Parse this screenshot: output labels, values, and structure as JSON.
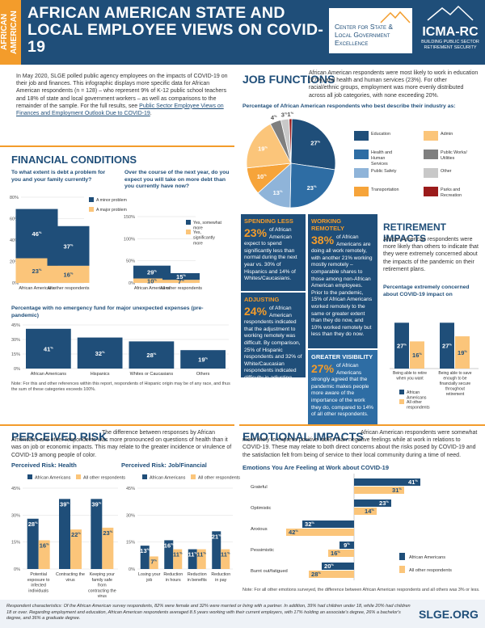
{
  "header": {
    "side_label": "AFRICAN AMERICAN",
    "title": "AFRICAN AMERICAN STATE AND LOCAL EMPLOYEE VIEWS ON COVID-19",
    "logo1": [
      "Center for State &",
      "Local Government",
      "Excellence"
    ],
    "logo2_name": "ICMA-RC",
    "logo2_sub": "BUILDING PUBLIC SECTOR RETIREMENT SECURITY"
  },
  "intro": {
    "text": "In May 2020, SLGE polled public agency employees on the impacts of COVID-19 on their job and finances. This infographic displays more specific data for African American respondents (n = 128) – who represent 9% of K-12 public school teachers and 18% of state and local government workers – as well as comparisons to the remainder of the sample.",
    "link_prefix": "For the full results, see",
    "link": "Public Sector Employee Views on Finances and Employment Outlook Due to COVID-19",
    "link_suffix": "."
  },
  "financial": {
    "title": "FINANCIAL CONDITIONS",
    "q1": "To what extent is debt a problem for you and your family currently?",
    "q2": "Over the course of the next year, do you expect you will take on more debt than you currently have now?",
    "q3": "Percentage with no emergency fund for major unexpected expenses (pre-pandemic)",
    "note": "Note: For this and other references within this report, respondents of Hispanic origin may be of any race, and thus the sum of these categories exceeds 100%."
  },
  "job": {
    "title": "JOB FUNCTIONS",
    "text": "African American respondents were most likely to work in education (27%) and health and human services (23%). For other racial/ethnic groups, employment was more evenly distributed across all job categories, with none exceeding 20%.",
    "chart_title": "Percentage of African American respondents who best describe their industry as:"
  },
  "spending": {
    "title": "SPENDING LESS",
    "pct": "23%",
    "text": "of African American expect to spend significantly less than normal during the next year vs. 30% of Hispanics and 14% of Whites/Caucasians."
  },
  "adjusting": {
    "title": "ADJUSTING",
    "pct": "24%",
    "text": "of African American respondents indicated that the adjustment to working remotely was difficult. By comparison, 25% of Hispanic respondents and 32% of White/Caucasian respondents indicated difficulty in adjusting."
  },
  "remote": {
    "title": "WORKING REMOTELY",
    "pct": "38%",
    "text": "of African Americans are doing all work remotely, with another 21% working mostly remotely – comparable shares to those among non-African American employees. Prior to the pandemic, 15% of African Americans worked remotely to the same or greater extent than they do now, and 10% worked remotely but less than they do now."
  },
  "visibility": {
    "title": "GREATER VISIBILITY",
    "pct": "27%",
    "text": "of African Americans strongly agreed that the pandemic makes people more aware of the importance of the work they do, compared to 14% of all other respondents."
  },
  "retirement": {
    "title": "RETIREMENT IMPACTS",
    "text": "African American respondents were more likely than others to indicate that they were extremely concerned about the impacts of the pandemic on their retirement plans.",
    "chart_title": "Percentage extremely concerned about COVID-19 impact on"
  },
  "risk": {
    "title": "PERCEIVED RISK",
    "text": "The difference between responses by African Americans and other respondents was more pronounced on questions of health than it was on job or economic impacts. This may relate to the greater incidence or virulence of COVID-19 among people of color.",
    "h1": "Perceived Risk: Health",
    "h2": "Perceived Risk: Job/Financial"
  },
  "emotional": {
    "title": "EMOTIONAL IMPACTS",
    "text": "African American respondents were somewhat more likely to express positive rather than negative feelings while at work in relations to COVID-19. These may relate to both direct concerns about the risks posed by COVID-19 and the satisfaction felt from being of service to their local community during a time of need.",
    "chart_title": "Emotions You Are Feeling at Work about COVID-19",
    "note": "Note: For all other emotions surveyed, the difference between African American respondents and all others was 3% or less."
  },
  "footer": {
    "text": "Respondent characteristics: Of the African American survey respondents, 82% were female and 32% were married or living with a partner. In addition, 39% had children under 18, while 20% had children 18 or over. Regarding employment and education, African American respondents averaged 8.5 years working with their current employers, with 17% holding an associate's degree, 26% a bachelor's degree, and 36% a graduate degree.",
    "site": "SLGE.ORG"
  },
  "colors": {
    "navy": "#1f4e79",
    "orange": "#f39c2b",
    "light_orange": "#fbc57a"
  },
  "chart_data": [
    {
      "type": "bar",
      "id": "debt_now",
      "categories": [
        "African Americans",
        "All other respondents"
      ],
      "series": [
        {
          "name": "A minor problem",
          "values": [
            46,
            37
          ]
        },
        {
          "name": "A major problem",
          "values": [
            23,
            16
          ]
        }
      ],
      "stacked": true,
      "ylim": [
        0,
        80
      ],
      "yticks": [
        "0%",
        "20%",
        "40%",
        "60%",
        "80%"
      ]
    },
    {
      "type": "bar",
      "id": "more_debt",
      "categories": [
        "African Americans",
        "All other respondents"
      ],
      "series": [
        {
          "name": "Yes, somewhat more",
          "values": [
            29,
            15
          ]
        },
        {
          "name": "Yes, significantly more",
          "values": [
            10,
            7
          ]
        }
      ],
      "stacked": true,
      "ylim": [
        0,
        150
      ],
      "yticks": [
        "0%",
        "50%",
        "100%",
        "150%"
      ]
    },
    {
      "type": "bar",
      "id": "no_fund",
      "categories": [
        "African Americans",
        "Hispanics",
        "Whites or Caucasians",
        "Others"
      ],
      "values": [
        41,
        32,
        28,
        19
      ],
      "ylim": [
        0,
        45
      ],
      "yticks": [
        "0%",
        "15%",
        "30%",
        "45%"
      ]
    },
    {
      "type": "pie",
      "id": "industry",
      "labels": [
        "Education",
        "Health and Human Services",
        "Public Safety",
        "Transportation",
        "Admin",
        "Public Works/ Utilities",
        "Other",
        "Parks and Recreation"
      ],
      "values": [
        27,
        23,
        13,
        10,
        19,
        4,
        3,
        1
      ],
      "colors": [
        "#1f4e79",
        "#2e6da4",
        "#8fb4d9",
        "#f6a43a",
        "#fbc57a",
        "#7f7f7f",
        "#c8c8c8",
        "#9b1b1b"
      ]
    },
    {
      "type": "bar",
      "id": "retirement",
      "categories": [
        "Being able to retire when you want",
        "Being able to save enough to be financially secure throughout retirement"
      ],
      "series": [
        {
          "name": "African Americans",
          "values": [
            27,
            27
          ]
        },
        {
          "name": "All other respondents",
          "values": [
            16,
            19
          ]
        }
      ]
    },
    {
      "type": "bar",
      "id": "risk_health",
      "categories": [
        "Potential exposure to infected individuals",
        "Contracting the virus",
        "Keeping your family safe from contracting the virus"
      ],
      "series": [
        {
          "name": "African Americans",
          "values": [
            28,
            39,
            39
          ]
        },
        {
          "name": "All other respondents",
          "values": [
            16,
            22,
            23
          ]
        }
      ],
      "ylim": [
        0,
        45
      ],
      "yticks": [
        "0%",
        "15%",
        "30%",
        "45%"
      ]
    },
    {
      "type": "bar",
      "id": "risk_job",
      "categories": [
        "Losing your job",
        "Reduction in hours",
        "Reduction in benefits",
        "Reduction in pay"
      ],
      "series": [
        {
          "name": "African Americans",
          "values": [
            13,
            16,
            11,
            21
          ]
        },
        {
          "name": "All other respondents",
          "values": [
            7,
            11,
            11,
            11
          ]
        }
      ],
      "ylim": [
        0,
        45
      ],
      "yticks": [
        "0%",
        "15%",
        "30%",
        "45%"
      ]
    },
    {
      "type": "bar",
      "id": "emotions",
      "categories": [
        "Grateful",
        "Optimistic",
        "Anxious",
        "Pessimistic",
        "Burnt out/fatigued"
      ],
      "series": [
        {
          "name": "African Americans",
          "values": [
            41,
            23,
            -32,
            -9,
            -20
          ]
        },
        {
          "name": "All other respondents",
          "values": [
            31,
            14,
            -42,
            -16,
            -28
          ]
        }
      ]
    }
  ]
}
